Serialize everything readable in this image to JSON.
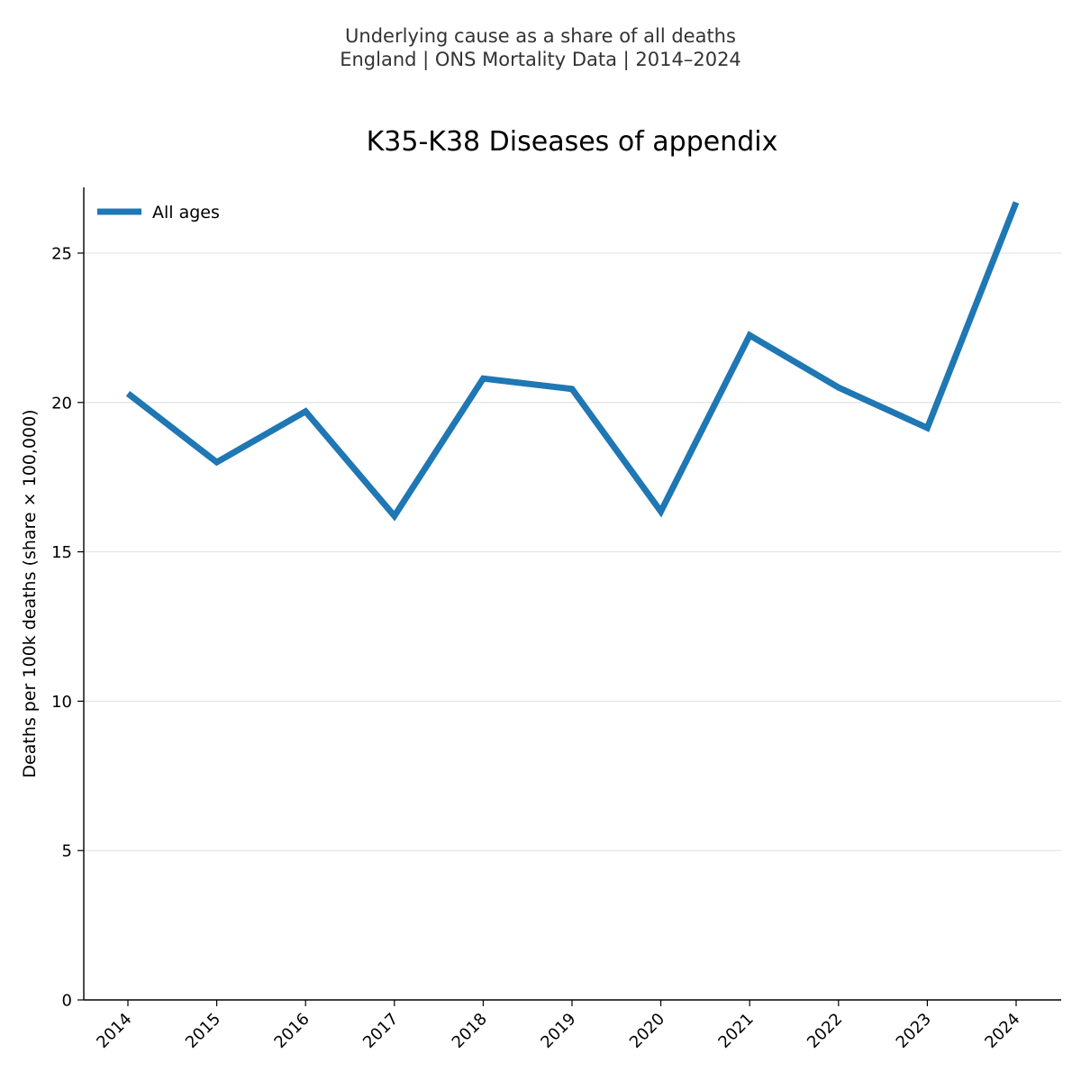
{
  "header": {
    "line1": "Underlying cause as a share of all deaths",
    "line2": "England | ONS Mortality Data | 2014–2024"
  },
  "chart_data": {
    "type": "line",
    "title": "K35-K38 Diseases of appendix",
    "xlabel": "",
    "ylabel": "Deaths per 100k deaths (share × 100,000)",
    "categories": [
      "2014",
      "2015",
      "2016",
      "2017",
      "2018",
      "2019",
      "2020",
      "2021",
      "2022",
      "2023",
      "2024"
    ],
    "series": [
      {
        "name": "All ages",
        "color": "#1f77b4",
        "values": [
          20.3,
          18.0,
          19.7,
          16.2,
          20.8,
          20.45,
          16.35,
          22.25,
          20.5,
          19.15,
          26.7
        ]
      }
    ],
    "ylim": [
      0,
      27.2
    ],
    "yticks": [
      0,
      5,
      10,
      15,
      20,
      25
    ],
    "grid": "horizontal",
    "legend_position": "top-left"
  }
}
